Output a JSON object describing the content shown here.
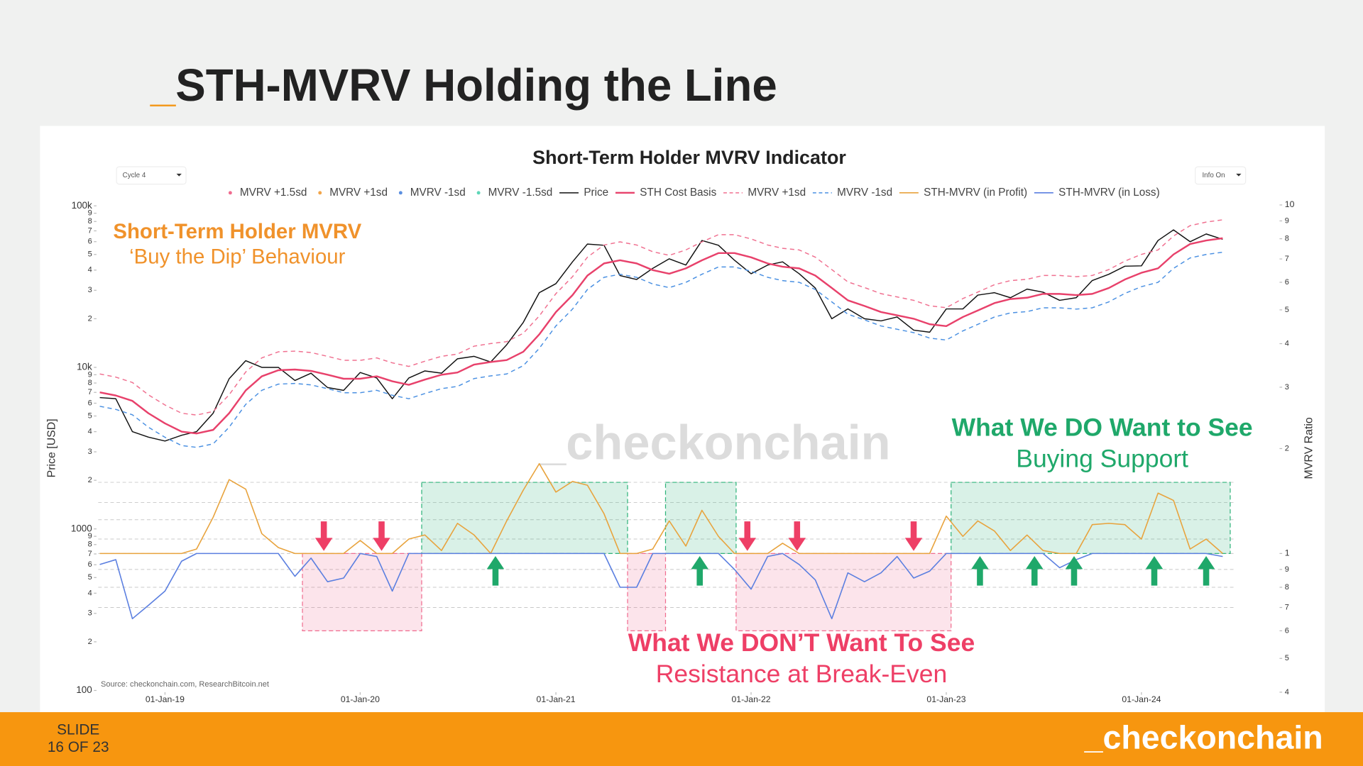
{
  "slide": {
    "title_prefix": "_",
    "title": "STH-MVRV Holding the Line",
    "footer_label": "SLIDE",
    "footer_page": "16 OF 23",
    "brand": "_checkonchain"
  },
  "chart_data": {
    "type": "line",
    "title": "Short-Term Holder MVRV Indicator",
    "ylabel": "Price [USD]",
    "y2label": "MVRV Ratio",
    "source": "Source: checkonchain.com, ResearchBitcoin.net",
    "watermark": "_checkonchain",
    "controls": [
      "Cycle 4",
      "Info On"
    ],
    "log_scale": true,
    "xlim": [
      "2018-08-08",
      "2024-09-12"
    ],
    "xticks": [
      {
        "value": "2019-01-01",
        "label": "01-Jan-19"
      },
      {
        "value": "2020-01-01",
        "label": "01-Jan-20"
      },
      {
        "value": "2021-01-01",
        "label": "01-Jan-21"
      },
      {
        "value": "2022-01-01",
        "label": "01-Jan-22"
      },
      {
        "value": "2023-01-01",
        "label": "01-Jan-23"
      },
      {
        "value": "2024-01-01",
        "label": "01-Jan-24"
      }
    ],
    "ylim": [
      100,
      100000
    ],
    "yticks": [
      100,
      {
        "value": 200,
        "label": "2"
      },
      {
        "value": 300,
        "label": "3"
      },
      {
        "value": 400,
        "label": "4"
      },
      {
        "value": 500,
        "label": "5"
      },
      {
        "value": 600,
        "label": "6"
      },
      {
        "value": 700,
        "label": "7"
      },
      {
        "value": 800,
        "label": "8"
      },
      {
        "value": 900,
        "label": "9"
      },
      1000,
      {
        "value": 2000,
        "label": "2"
      },
      {
        "value": 3000,
        "label": "3"
      },
      {
        "value": 4000,
        "label": "4"
      },
      {
        "value": 5000,
        "label": "5"
      },
      {
        "value": 6000,
        "label": "6"
      },
      {
        "value": 7000,
        "label": "7"
      },
      {
        "value": 8000,
        "label": "8"
      },
      {
        "value": 9000,
        "label": "9"
      },
      {
        "value": 10000,
        "label": "10k"
      },
      {
        "value": 20000,
        "label": "2"
      },
      {
        "value": 30000,
        "label": "3"
      },
      {
        "value": 40000,
        "label": "4"
      },
      {
        "value": 50000,
        "label": "5"
      },
      {
        "value": 60000,
        "label": "6"
      },
      {
        "value": 70000,
        "label": "7"
      },
      {
        "value": 80000,
        "label": "8"
      },
      {
        "value": 90000,
        "label": "9"
      },
      {
        "value": 100000,
        "label": "100k"
      }
    ],
    "y2lim": [
      0.4,
      10
    ],
    "y2ticks": [
      {
        "value": 0.4,
        "label": "4"
      },
      {
        "value": 0.5,
        "label": "5"
      },
      {
        "value": 0.6,
        "label": "6"
      },
      {
        "value": 0.7,
        "label": "7"
      },
      {
        "value": 0.8,
        "label": "8"
      },
      {
        "value": 0.9,
        "label": "9"
      },
      1,
      2,
      3,
      4,
      5,
      6,
      7,
      8,
      9,
      10
    ],
    "y2grid": [
      0.7,
      0.8,
      0.9,
      1,
      1.1,
      1.25,
      1.4,
      1.6
    ],
    "legend": [
      {
        "name": "MVRV +1.5sd",
        "color": "#f06c8f",
        "marker": "dot"
      },
      {
        "name": "MVRV +1sd",
        "color": "#f2a54a",
        "marker": "dot"
      },
      {
        "name": "MVRV -1sd",
        "color": "#5b8fe0",
        "marker": "dot"
      },
      {
        "name": "MVRV -1.5sd",
        "color": "#5fd6b8",
        "marker": "dot"
      }
    ],
    "x": [
      "2018-09-01",
      "2018-10-01",
      "2018-11-01",
      "2018-12-01",
      "2019-01-01",
      "2019-02-01",
      "2019-03-01",
      "2019-04-01",
      "2019-05-01",
      "2019-06-01",
      "2019-07-01",
      "2019-08-01",
      "2019-09-01",
      "2019-10-01",
      "2019-11-01",
      "2019-12-01",
      "2020-01-01",
      "2020-02-01",
      "2020-03-01",
      "2020-04-01",
      "2020-05-01",
      "2020-06-01",
      "2020-07-01",
      "2020-08-01",
      "2020-09-01",
      "2020-10-01",
      "2020-11-01",
      "2020-12-01",
      "2021-01-01",
      "2021-02-01",
      "2021-03-01",
      "2021-04-01",
      "2021-05-01",
      "2021-06-01",
      "2021-07-01",
      "2021-08-01",
      "2021-09-01",
      "2021-10-01",
      "2021-11-01",
      "2021-12-01",
      "2022-01-01",
      "2022-02-01",
      "2022-03-01",
      "2022-04-01",
      "2022-05-01",
      "2022-06-01",
      "2022-07-01",
      "2022-08-01",
      "2022-09-01",
      "2022-10-01",
      "2022-11-01",
      "2022-12-01",
      "2023-01-01",
      "2023-02-01",
      "2023-03-01",
      "2023-04-01",
      "2023-05-01",
      "2023-06-01",
      "2023-07-01",
      "2023-08-01",
      "2023-09-01",
      "2023-10-01",
      "2023-11-01",
      "2023-12-01",
      "2024-01-01",
      "2024-02-01",
      "2024-03-01",
      "2024-04-01",
      "2024-05-01",
      "2024-06-01"
    ],
    "series": [
      {
        "name": "Price",
        "color": "#111111",
        "width": 1.2,
        "values": [
          6500,
          6400,
          4000,
          3700,
          3500,
          3800,
          4000,
          5200,
          8500,
          11000,
          10000,
          10000,
          8300,
          9200,
          7500,
          7200,
          9300,
          8600,
          6400,
          8600,
          9500,
          9200,
          11300,
          11700,
          10800,
          13800,
          19000,
          29000,
          33000,
          45000,
          58000,
          57000,
          37000,
          35000,
          41000,
          47000,
          43000,
          61000,
          57000,
          46000,
          38000,
          43000,
          45000,
          38000,
          31000,
          20000,
          23000,
          20000,
          19400,
          20500,
          17000,
          16500,
          23000,
          23000,
          28000,
          29000,
          27000,
          30500,
          29200,
          26000,
          27000,
          34500,
          37700,
          42300,
          42500,
          61000,
          71000,
          60000,
          67000,
          62000
        ]
      },
      {
        "name": "STH Cost Basis",
        "color": "#e8416b",
        "width": 2,
        "values": [
          7000,
          6700,
          6200,
          5200,
          4500,
          4000,
          3900,
          4100,
          5200,
          7200,
          8800,
          9600,
          9700,
          9500,
          9000,
          8500,
          8500,
          8800,
          8200,
          7800,
          8400,
          9000,
          9300,
          10400,
          10800,
          11100,
          12500,
          16000,
          22000,
          28000,
          37000,
          44000,
          46000,
          44000,
          40000,
          38000,
          41000,
          46000,
          51000,
          51000,
          48000,
          44000,
          42000,
          41000,
          37000,
          31000,
          26000,
          24000,
          22000,
          21000,
          20000,
          18500,
          18000,
          20500,
          22500,
          25000,
          26500,
          27000,
          28500,
          28500,
          28000,
          28500,
          31000,
          35000,
          38500,
          41000,
          50000,
          58000,
          61000,
          63000
        ]
      },
      {
        "name": "MVRV +1sd",
        "color": "#f07090",
        "width": 1.2,
        "dash": true,
        "values": [
          9100,
          8710,
          8060,
          6760,
          5850,
          5200,
          5070,
          5330,
          6760,
          9360,
          11440,
          12480,
          12610,
          12350,
          11700,
          11050,
          11050,
          11440,
          10660,
          10140,
          10920,
          11700,
          12090,
          13520,
          14040,
          14430,
          16250,
          20800,
          28600,
          36400,
          48100,
          57200,
          59800,
          57200,
          52000,
          49400,
          53300,
          59800,
          66300,
          66300,
          62400,
          57200,
          54600,
          53300,
          48100,
          40300,
          33800,
          31200,
          28600,
          27300,
          26000,
          24050,
          23400,
          26650,
          29250,
          32500,
          34450,
          35100,
          37050,
          37050,
          36400,
          37050,
          40300,
          45500,
          50050,
          53300,
          65000,
          75400,
          79300,
          81900
        ]
      },
      {
        "name": "MVRV -1sd",
        "color": "#4a90e2",
        "width": 1.2,
        "dash": true,
        "values": [
          5740,
          5494,
          5084,
          4264,
          3690,
          3280,
          3198,
          3362,
          4264,
          5904,
          7216,
          7872,
          7954,
          7790,
          7380,
          6970,
          6970,
          7216,
          6724,
          6396,
          6888,
          7380,
          7626,
          8528,
          8856,
          9102,
          10250,
          13120,
          18040,
          22960,
          30340,
          36080,
          37720,
          36080,
          32800,
          31160,
          33620,
          37720,
          41820,
          41820,
          39360,
          36080,
          34440,
          33620,
          30340,
          25420,
          21320,
          19680,
          18040,
          17220,
          16400,
          15170,
          14760,
          16810,
          18450,
          20500,
          21730,
          22140,
          23370,
          23370,
          22960,
          23370,
          25420,
          28700,
          31570,
          33620,
          41000,
          47560,
          50020,
          51660
        ]
      },
      {
        "name": "STH-MVRV (in Profit)",
        "color": "#e8a33d",
        "width": 1.3,
        "axis": "y2",
        "values": [
          1,
          1,
          1,
          1,
          1,
          1,
          1.03,
          1.27,
          1.63,
          1.53,
          1.14,
          1.04,
          1,
          1,
          1,
          1,
          1.09,
          1,
          1,
          1.1,
          1.13,
          1.02,
          1.22,
          1.13,
          1,
          1.24,
          1.52,
          1.81,
          1.5,
          1.61,
          1.57,
          1.3,
          1,
          1,
          1.03,
          1.24,
          1.05,
          1.33,
          1.12,
          1,
          1,
          1,
          1.07,
          1,
          1,
          1,
          1,
          1,
          1,
          1,
          1,
          1,
          1.28,
          1.12,
          1.24,
          1.16,
          1.02,
          1.13,
          1.02,
          1,
          1,
          1.21,
          1.22,
          1.21,
          1.1,
          1.49,
          1.42,
          1.03,
          1.1,
          1
        ]
      },
      {
        "name": "STH-MVRV (in Loss)",
        "color": "#5b7fe0",
        "width": 1.3,
        "axis": "y2",
        "values": [
          0.93,
          0.96,
          0.65,
          0.71,
          0.78,
          0.95,
          1,
          1,
          1,
          1,
          1,
          1,
          0.86,
          0.97,
          0.83,
          0.85,
          1,
          0.98,
          0.78,
          1,
          1,
          1,
          1,
          1,
          1,
          1,
          1,
          1,
          1,
          1,
          1,
          1,
          0.8,
          0.8,
          1,
          1,
          1,
          1,
          1,
          0.9,
          0.79,
          0.98,
          1,
          0.93,
          0.84,
          0.65,
          0.88,
          0.83,
          0.88,
          0.98,
          0.85,
          0.89,
          1,
          1,
          1,
          1,
          1,
          1,
          1,
          0.91,
          0.96,
          1,
          1,
          1,
          1,
          1,
          1,
          1,
          1,
          0.98
        ]
      }
    ],
    "regions": [
      {
        "start": "2019-09-15",
        "end": "2020-04-25",
        "ymin": 0.6,
        "ymax": 1,
        "color": "#f06c8f"
      },
      {
        "start": "2020-04-25",
        "end": "2021-05-15",
        "ymin": 1,
        "ymax": 1.6,
        "color": "#2fb37a"
      },
      {
        "start": "2021-05-15",
        "end": "2021-07-25",
        "ymin": 0.6,
        "ymax": 1,
        "color": "#f06c8f"
      },
      {
        "start": "2021-07-25",
        "end": "2021-12-04",
        "ymin": 1,
        "ymax": 1.6,
        "color": "#2fb37a"
      },
      {
        "start": "2021-12-04",
        "end": "2023-01-10",
        "ymin": 0.6,
        "ymax": 1,
        "color": "#f06c8f"
      },
      {
        "start": "2023-01-10",
        "end": "2024-06-15",
        "ymin": 1,
        "ymax": 1.6,
        "color": "#2fb37a"
      }
    ],
    "arrows": [
      {
        "x": "2019-10-25",
        "y": 1,
        "direction": "down",
        "color": "#ee3f66"
      },
      {
        "x": "2020-02-10",
        "y": 1,
        "direction": "down",
        "color": "#ee3f66"
      },
      {
        "x": "2021-12-25",
        "y": 1,
        "direction": "down",
        "color": "#ee3f66"
      },
      {
        "x": "2022-03-28",
        "y": 1,
        "direction": "down",
        "color": "#ee3f66"
      },
      {
        "x": "2022-11-01",
        "y": 1,
        "direction": "down",
        "color": "#ee3f66"
      },
      {
        "x": "2020-09-10",
        "y": 1,
        "direction": "up",
        "color": "#1fa86a"
      },
      {
        "x": "2021-09-27",
        "y": 1,
        "direction": "up",
        "color": "#1fa86a"
      },
      {
        "x": "2023-03-05",
        "y": 1,
        "direction": "up",
        "color": "#1fa86a"
      },
      {
        "x": "2023-06-15",
        "y": 1,
        "direction": "up",
        "color": "#1fa86a"
      },
      {
        "x": "2023-08-28",
        "y": 1,
        "direction": "up",
        "color": "#1fa86a"
      },
      {
        "x": "2024-01-25",
        "y": 1,
        "direction": "up",
        "color": "#1fa86a"
      },
      {
        "x": "2024-05-01",
        "y": 1,
        "direction": "up",
        "color": "#1fa86a"
      }
    ],
    "annotations": {
      "profit_title": "Short-Term Holder MVRV",
      "profit_sub": "‘Buy the Dip’ Behaviour",
      "want_title": "What We DO Want to See",
      "want_sub": "Buying Support",
      "dont_title": "What We DON’T Want To See",
      "dont_sub": "Resistance at Break-Even"
    }
  }
}
